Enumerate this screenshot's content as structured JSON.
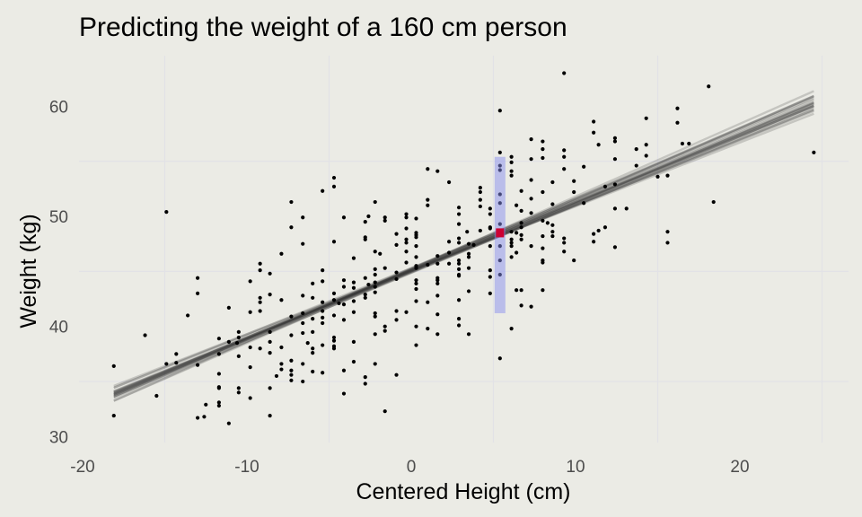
{
  "chart_data": {
    "type": "scatter",
    "title": "Predicting the weight of a 160 cm person",
    "xlabel": "Centered Height (cm)",
    "ylabel": "Weight (kg)",
    "xlim": [
      -20.5,
      26.5
    ],
    "ylim": [
      29.6,
      64.6
    ],
    "x_ticks": [
      -20,
      -10,
      0,
      10,
      20
    ],
    "x_tick_labels": [
      "-20",
      "-10",
      "0",
      "10",
      "20"
    ],
    "y_ticks": [
      30,
      40,
      50,
      60
    ],
    "y_tick_labels": [
      "30",
      "40",
      "50",
      "60"
    ],
    "minor_grid_x": [
      -15,
      -5,
      5,
      15,
      25
    ],
    "minor_grid_y": [
      35,
      45,
      55
    ],
    "grid": true,
    "legend": "none",
    "colors": {
      "background": "#ebebe5",
      "grid": "#e2e2e6",
      "points": "#000000",
      "lines": "#2b2b2b",
      "interval": "#b8baf0",
      "prediction": "#cc0033"
    },
    "regression_lines": {
      "x_range": [
        -18.1,
        24.5
      ],
      "intercepts": [
        45.1,
        45.0,
        45.2,
        44.9,
        45.3,
        45.1,
        45.0,
        45.2,
        44.95,
        45.15,
        45.05,
        45.25,
        44.85,
        45.1,
        45.2,
        45.0,
        45.1,
        44.9,
        45.3,
        45.05
      ],
      "slopes": [
        0.62,
        0.6,
        0.64,
        0.61,
        0.63,
        0.59,
        0.65,
        0.62,
        0.6,
        0.63,
        0.61,
        0.64,
        0.62,
        0.58,
        0.66,
        0.62,
        0.61,
        0.63,
        0.6,
        0.62
      ]
    },
    "prediction": {
      "x": 5.4,
      "y": 48.5,
      "interval": [
        41.2,
        55.4
      ]
    },
    "points": [
      [
        -4.7,
        53.5
      ],
      [
        -4.7,
        52.7
      ],
      [
        -5.4,
        52.3
      ],
      [
        -7.3,
        51.3
      ],
      [
        -6.6,
        49.9
      ],
      [
        -14.9,
        50.4
      ],
      [
        -7.3,
        49.0
      ],
      [
        -6.6,
        47.5
      ],
      [
        -4.7,
        47.7
      ],
      [
        -7.9,
        46.6
      ],
      [
        -9.2,
        45.7
      ],
      [
        -9.2,
        45.1
      ],
      [
        -8.6,
        44.8
      ],
      [
        -5.4,
        45.1
      ],
      [
        -13.0,
        44.4
      ],
      [
        -13.0,
        43.0
      ],
      [
        -9.8,
        44.1
      ],
      [
        -9.2,
        42.6
      ],
      [
        -9.2,
        42.2
      ],
      [
        -8.6,
        42.9
      ],
      [
        -7.9,
        42.4
      ],
      [
        -6.6,
        42.8
      ],
      [
        -6.0,
        43.9
      ],
      [
        -5.4,
        44.1
      ],
      [
        -6.0,
        42.6
      ],
      [
        -4.7,
        43.0
      ],
      [
        -4.7,
        42.4
      ],
      [
        -5.4,
        42.2
      ],
      [
        -9.8,
        41.3
      ],
      [
        -9.2,
        41.4
      ],
      [
        -11.1,
        41.7
      ],
      [
        -13.6,
        41.0
      ],
      [
        -16.2,
        39.2
      ],
      [
        -7.3,
        40.9
      ],
      [
        -6.6,
        41.2
      ],
      [
        -6.6,
        40.3
      ],
      [
        -6.6,
        39.4
      ],
      [
        -6.0,
        40.7
      ],
      [
        -5.4,
        40.8
      ],
      [
        -5.4,
        40.3
      ],
      [
        -4.7,
        41.0
      ],
      [
        -5.4,
        41.4
      ],
      [
        -7.3,
        39.2
      ],
      [
        -10.5,
        39.5
      ],
      [
        -10.5,
        39.0
      ],
      [
        -11.7,
        38.9
      ],
      [
        -11.1,
        38.6
      ],
      [
        -10.6,
        38.5
      ],
      [
        -9.8,
        38.1
      ],
      [
        -9.2,
        38.0
      ],
      [
        -8.6,
        39.5
      ],
      [
        -8.6,
        38.6
      ],
      [
        -8.6,
        37.6
      ],
      [
        -7.9,
        38.1
      ],
      [
        -6.3,
        38.5
      ],
      [
        -6.0,
        39.5
      ],
      [
        -6.0,
        38.0
      ],
      [
        -6.0,
        37.6
      ],
      [
        -5.4,
        38.3
      ],
      [
        -4.7,
        39.0
      ],
      [
        -4.7,
        38.7
      ],
      [
        -4.7,
        38.2
      ],
      [
        -4.7,
        38.0
      ],
      [
        -14.3,
        37.5
      ],
      [
        -14.9,
        36.6
      ],
      [
        -14.3,
        36.7
      ],
      [
        -18.1,
        36.4
      ],
      [
        -13.0,
        36.5
      ],
      [
        -11.7,
        37.5
      ],
      [
        -10.5,
        37.3
      ],
      [
        -9.8,
        36.3
      ],
      [
        -11.7,
        35.7
      ],
      [
        -11.7,
        34.5
      ],
      [
        -11.7,
        34.4
      ],
      [
        -10.5,
        34.4
      ],
      [
        -10.5,
        34.0
      ],
      [
        -9.8,
        33.5
      ],
      [
        -8.6,
        34.4
      ],
      [
        -7.9,
        36.6
      ],
      [
        -7.9,
        36.1
      ],
      [
        -8.2,
        35.5
      ],
      [
        -7.3,
        36.9
      ],
      [
        -7.3,
        36.0
      ],
      [
        -7.3,
        35.6
      ],
      [
        -7.3,
        35.1
      ],
      [
        -6.6,
        36.6
      ],
      [
        -6.6,
        35.0
      ],
      [
        -6.0,
        35.9
      ],
      [
        -5.4,
        35.8
      ],
      [
        -15.5,
        33.7
      ],
      [
        -18.1,
        31.9
      ],
      [
        -12.5,
        32.9
      ],
      [
        -11.7,
        33.1
      ],
      [
        -11.7,
        32.8
      ],
      [
        -13.0,
        31.7
      ],
      [
        -12.6,
        31.8
      ],
      [
        -11.1,
        31.2
      ],
      [
        -8.6,
        31.9
      ],
      [
        -4.1,
        49.9
      ],
      [
        -4.1,
        44.2
      ],
      [
        -4.1,
        43.6
      ],
      [
        -4.1,
        42.0
      ],
      [
        -4.1,
        40.6
      ],
      [
        -4.1,
        36.0
      ],
      [
        -4.1,
        33.9
      ],
      [
        -4.4,
        42.1
      ],
      [
        -3.5,
        46.2
      ],
      [
        -3.5,
        44.0
      ],
      [
        -3.5,
        43.5
      ],
      [
        -3.5,
        42.3
      ],
      [
        -3.5,
        41.3
      ],
      [
        -3.5,
        38.6
      ],
      [
        -3.5,
        36.8
      ],
      [
        -2.8,
        49.5
      ],
      [
        -2.8,
        48.1
      ],
      [
        -2.8,
        47.9
      ],
      [
        -2.8,
        44.4
      ],
      [
        -2.8,
        42.9
      ],
      [
        -2.8,
        42.6
      ],
      [
        -2.8,
        35.4
      ],
      [
        -2.8,
        34.8
      ],
      [
        -2.6,
        50.0
      ],
      [
        -2.6,
        43.8
      ],
      [
        -2.2,
        51.3
      ],
      [
        -2.2,
        46.8
      ],
      [
        -2.2,
        45.2
      ],
      [
        -2.2,
        44.7
      ],
      [
        -2.2,
        44.0
      ],
      [
        -2.2,
        43.6
      ],
      [
        -2.2,
        43.1
      ],
      [
        -2.2,
        41.2
      ],
      [
        -2.2,
        40.9
      ],
      [
        -2.2,
        39.3
      ],
      [
        -2.2,
        36.6
      ],
      [
        -1.9,
        46.6
      ],
      [
        -1.6,
        49.9
      ],
      [
        -1.6,
        49.6
      ],
      [
        -1.6,
        45.3
      ],
      [
        -1.6,
        40.0
      ],
      [
        -1.6,
        39.6
      ],
      [
        -1.6,
        32.3
      ],
      [
        -0.9,
        48.4
      ],
      [
        -0.9,
        47.4
      ],
      [
        -0.9,
        44.9
      ],
      [
        -0.9,
        44.3
      ],
      [
        -0.9,
        41.4
      ],
      [
        -0.9,
        40.6
      ],
      [
        -0.9,
        35.6
      ],
      [
        -0.3,
        50.2
      ],
      [
        -0.3,
        49.9
      ],
      [
        -0.3,
        48.9
      ],
      [
        -0.3,
        47.9
      ],
      [
        -0.3,
        47.6
      ],
      [
        -0.3,
        46.8
      ],
      [
        -0.3,
        45.8
      ],
      [
        -0.3,
        41.3
      ],
      [
        0.3,
        49.8
      ],
      [
        0.3,
        48.5
      ],
      [
        0.3,
        48.3
      ],
      [
        0.3,
        48.1
      ],
      [
        0.3,
        47.3
      ],
      [
        0.3,
        46.3
      ],
      [
        0.3,
        45.5
      ],
      [
        0.3,
        45.3
      ],
      [
        0.3,
        44.2
      ],
      [
        0.3,
        43.9
      ],
      [
        0.3,
        43.4
      ],
      [
        0.3,
        42.3
      ],
      [
        0.3,
        40.0
      ],
      [
        0.3,
        38.3
      ],
      [
        1.0,
        54.3
      ],
      [
        1.0,
        51.5
      ],
      [
        1.0,
        51.0
      ],
      [
        1.0,
        45.6
      ],
      [
        1.0,
        42.2
      ],
      [
        1.0,
        39.8
      ],
      [
        1.6,
        54.1
      ],
      [
        1.6,
        46.4
      ],
      [
        1.6,
        45.7
      ],
      [
        1.6,
        44.4
      ],
      [
        1.6,
        44.2
      ],
      [
        1.6,
        43.9
      ],
      [
        1.6,
        42.8
      ],
      [
        1.6,
        41.1
      ],
      [
        1.6,
        39.3
      ],
      [
        2.3,
        53.1
      ],
      [
        2.3,
        47.7
      ],
      [
        2.3,
        46.7
      ],
      [
        2.3,
        45.7
      ],
      [
        2.9,
        50.8
      ],
      [
        2.9,
        50.2
      ],
      [
        2.9,
        49.3
      ],
      [
        2.9,
        48.0
      ],
      [
        2.9,
        47.6
      ],
      [
        2.9,
        46.0
      ],
      [
        2.9,
        45.7
      ],
      [
        2.9,
        45.2
      ],
      [
        2.9,
        44.7
      ],
      [
        2.9,
        44.6
      ],
      [
        2.9,
        42.4
      ],
      [
        2.9,
        40.7
      ],
      [
        2.9,
        40.1
      ],
      [
        3.4,
        48.6
      ],
      [
        3.5,
        47.5
      ],
      [
        3.5,
        46.6
      ],
      [
        3.5,
        46.3
      ],
      [
        3.5,
        45.3
      ],
      [
        3.5,
        43.2
      ],
      [
        3.5,
        39.3
      ],
      [
        3.8,
        47.4
      ],
      [
        4.2,
        52.6
      ],
      [
        4.2,
        52.2
      ],
      [
        4.2,
        51.5
      ],
      [
        4.2,
        50.9
      ],
      [
        4.2,
        48.7
      ],
      [
        4.8,
        50.7
      ],
      [
        4.8,
        50.2
      ],
      [
        4.8,
        49.0
      ],
      [
        4.8,
        48.9
      ],
      [
        4.8,
        47.3
      ],
      [
        4.8,
        45.1
      ],
      [
        4.8,
        44.5
      ],
      [
        4.8,
        43.0
      ],
      [
        5.4,
        59.6
      ],
      [
        5.4,
        55.8
      ],
      [
        5.4,
        54.6
      ],
      [
        5.4,
        54.2
      ],
      [
        5.4,
        52.0
      ],
      [
        5.4,
        51.2
      ],
      [
        5.4,
        49.3
      ],
      [
        5.4,
        47.3
      ],
      [
        5.4,
        46.0
      ],
      [
        5.4,
        44.7
      ],
      [
        5.4,
        37.1
      ],
      [
        6.1,
        55.4
      ],
      [
        6.1,
        54.9
      ],
      [
        6.1,
        54.1
      ],
      [
        6.1,
        53.7
      ],
      [
        6.1,
        48.6
      ],
      [
        6.1,
        47.9
      ],
      [
        6.1,
        47.6
      ],
      [
        6.1,
        47.3
      ],
      [
        6.1,
        46.3
      ],
      [
        6.1,
        39.8
      ],
      [
        6.4,
        51.0
      ],
      [
        6.4,
        48.5
      ],
      [
        6.4,
        46.7
      ],
      [
        6.4,
        43.3
      ],
      [
        6.7,
        52.3
      ],
      [
        6.7,
        50.5
      ],
      [
        6.7,
        49.4
      ],
      [
        6.7,
        49.0
      ],
      [
        6.7,
        48.3
      ],
      [
        6.7,
        47.9
      ],
      [
        6.7,
        43.3
      ],
      [
        6.7,
        41.9
      ],
      [
        7.3,
        57.0
      ],
      [
        7.3,
        55.2
      ],
      [
        7.3,
        53.3
      ],
      [
        7.3,
        51.6
      ],
      [
        7.3,
        50.3
      ],
      [
        7.3,
        47.3
      ],
      [
        7.3,
        41.8
      ],
      [
        8.0,
        56.8
      ],
      [
        8.0,
        56.1
      ],
      [
        8.0,
        55.3
      ],
      [
        8.0,
        52.2
      ],
      [
        8.0,
        49.6
      ],
      [
        8.0,
        48.2
      ],
      [
        8.0,
        47.1
      ],
      [
        8.0,
        46.0
      ],
      [
        8.0,
        45.8
      ],
      [
        8.0,
        43.3
      ],
      [
        8.3,
        49.4
      ],
      [
        8.6,
        53.1
      ],
      [
        8.6,
        51.1
      ],
      [
        8.6,
        49.2
      ],
      [
        8.6,
        48.6
      ],
      [
        8.6,
        48.2
      ],
      [
        9.3,
        63.0
      ],
      [
        9.3,
        56.0
      ],
      [
        9.3,
        55.4
      ],
      [
        9.3,
        54.3
      ],
      [
        9.3,
        48.0
      ],
      [
        9.3,
        47.6
      ],
      [
        9.3,
        46.8
      ],
      [
        9.9,
        53.2
      ],
      [
        9.9,
        52.2
      ],
      [
        9.9,
        46.0
      ],
      [
        10.5,
        54.5
      ],
      [
        10.5,
        51.2
      ],
      [
        11.1,
        58.6
      ],
      [
        11.1,
        57.6
      ],
      [
        11.4,
        56.5
      ],
      [
        11.4,
        48.7
      ],
      [
        11.1,
        48.4
      ],
      [
        11.1,
        47.7
      ],
      [
        12.4,
        57.1
      ],
      [
        12.4,
        56.8
      ],
      [
        12.4,
        55.2
      ],
      [
        12.4,
        52.9
      ],
      [
        12.4,
        50.7
      ],
      [
        12.4,
        47.2
      ],
      [
        11.8,
        52.7
      ],
      [
        11.8,
        49.0
      ],
      [
        13.1,
        50.7
      ],
      [
        13.7,
        56.1
      ],
      [
        13.7,
        54.6
      ],
      [
        14.3,
        58.9
      ],
      [
        14.3,
        56.5
      ],
      [
        14.3,
        55.5
      ],
      [
        15.0,
        53.6
      ],
      [
        15.6,
        53.7
      ],
      [
        15.6,
        48.6
      ],
      [
        15.6,
        47.6
      ],
      [
        16.2,
        59.8
      ],
      [
        16.2,
        58.5
      ],
      [
        16.5,
        56.6
      ],
      [
        16.9,
        56.6
      ],
      [
        18.1,
        61.8
      ],
      [
        18.4,
        51.3
      ],
      [
        24.5,
        55.8
      ]
    ]
  }
}
